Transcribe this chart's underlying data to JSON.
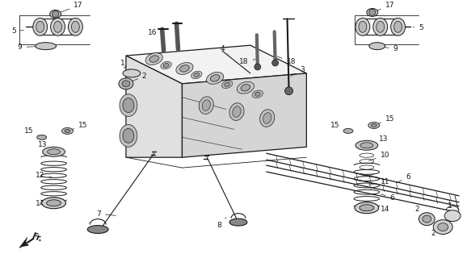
{
  "bg_color": "#ffffff",
  "dark": "#1a1a1a",
  "fig_width": 5.78,
  "fig_height": 3.2,
  "dpi": 100
}
